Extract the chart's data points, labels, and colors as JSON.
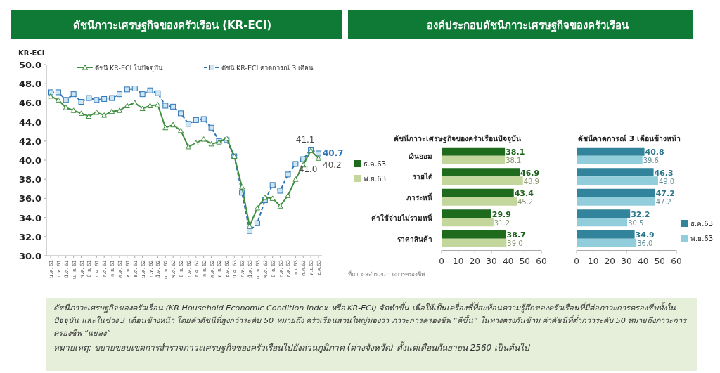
{
  "chart_data": [
    {
      "type": "line",
      "title": "ดัชนีภาวะเศรษฐกิจของครัวเรือน (KR-ECI)",
      "ylabel": "KR-ECI",
      "categories": [
        "ม.ค. 61",
        "ก.พ. 61",
        "มี.ค. 61",
        "เม.ย. 61",
        "พ.ค. 61",
        "มิ.ย. 61",
        "ก.ค. 61",
        "ส.ค. 61",
        "ก.ย. 61",
        "ต.ค. 61",
        "พ.ย. 61",
        "ธ.ค. 61",
        "ม.ค. 62",
        "ก.พ. 62",
        "มี.ค. 62",
        "เม.ย. 62",
        "พ.ค. 62",
        "มิ.ย. 62",
        "ก.ค. 62",
        "ส.ค. 62",
        "ก.ย. 62",
        "ต.ค. 62",
        "พ.ย. 62",
        "ธ.ค. 62",
        "ม.ค. 63",
        "ก.พ. 63",
        "มี.ค. 63",
        "เม.ย. 63",
        "พ.ค. 63",
        "มิ.ย. 63",
        "ก.ค. 63",
        "ส.ค. 63",
        "ก.ย.63",
        "ต.ค.63",
        "พ.ย.63",
        "ธ.ค.63"
      ],
      "series": [
        {
          "name": "ดัชนี KR-ECI ในปัจจุบัน",
          "color": "#3e8e3e",
          "marker": "triangle",
          "line_style": "solid",
          "values": [
            46.7,
            46.3,
            45.5,
            45.2,
            44.9,
            44.6,
            45.0,
            44.7,
            45.1,
            45.2,
            45.7,
            46.0,
            45.4,
            45.7,
            45.8,
            43.4,
            43.7,
            43.1,
            41.4,
            41.8,
            42.2,
            41.7,
            41.9,
            42.3,
            40.4,
            37.2,
            33.1,
            35.0,
            36.1,
            36.0,
            35.2,
            36.3,
            38.0,
            39.5,
            41.0,
            40.2
          ],
          "value_labels": [
            null,
            null,
            null,
            null,
            null,
            null,
            null,
            null,
            null,
            null,
            null,
            null,
            null,
            null,
            null,
            null,
            null,
            null,
            null,
            null,
            null,
            null,
            null,
            null,
            null,
            null,
            null,
            null,
            null,
            null,
            null,
            null,
            null,
            null,
            "41.0",
            "40.2"
          ]
        },
        {
          "name": "ดัชนี KR-ECI คาดการณ์ 3 เดือน",
          "color": "#2e75b6",
          "marker": "square",
          "line_style": "dashed",
          "values": [
            47.1,
            47.1,
            46.3,
            46.9,
            46.1,
            46.5,
            46.3,
            46.4,
            46.5,
            46.9,
            47.4,
            47.5,
            46.9,
            47.3,
            47.0,
            45.7,
            45.6,
            44.9,
            43.8,
            44.2,
            44.3,
            43.4,
            42.0,
            42.1,
            40.4,
            36.6,
            32.6,
            33.4,
            35.8,
            37.4,
            36.8,
            38.5,
            39.6,
            40.1,
            41.1,
            40.7
          ],
          "value_labels": [
            null,
            null,
            null,
            null,
            null,
            null,
            null,
            null,
            null,
            null,
            null,
            null,
            null,
            null,
            null,
            null,
            null,
            null,
            null,
            null,
            null,
            null,
            null,
            null,
            null,
            null,
            null,
            null,
            null,
            null,
            null,
            null,
            null,
            null,
            "41.1",
            "40.7"
          ]
        }
      ],
      "ylim": [
        30,
        50
      ],
      "yticks": [
        {
          "value": 30,
          "label": "30.0"
        },
        {
          "value": 32,
          "label": "32.0"
        },
        {
          "value": 34,
          "label": "34.0"
        },
        {
          "value": 36,
          "label": "36.0"
        },
        {
          "value": 38,
          "label": "38.0"
        },
        {
          "value": 40,
          "label": "40.0"
        },
        {
          "value": 42,
          "label": "42.0"
        },
        {
          "value": 44,
          "label": "44.0"
        },
        {
          "value": 46,
          "label": "46.0"
        },
        {
          "value": 48,
          "label": "48.0"
        },
        {
          "value": 50,
          "label": "50.0"
        }
      ],
      "legend": "top",
      "grid": false,
      "annotations": [
        "ดัชนีภาวะเศรษฐกิจของครัวเรือน (KR Household Economic Condition Index หรือ KR-ECI) จัดทำขึ้น เพื่อให้เป็นเครื่องชี้ที่สะท้อนความรู้สึกของครัวเรือนที่มีต่อภาวะการครองชีพทั้งในปัจจุบัน และในช่วง 3 เดือนข้างหน้า โดยค่าดัชนีที่สูงกว่าระดับ 50 หมายถึง ครัวเรือนส่วนใหญ่มองว่า ภาวะการครองชีพ “ดีขึ้น” ในทางตรงกันข้าม ค่าดัชนีที่ต่ำกว่าระดับ 50 หมายถึงภาวะการครองชีพ “แย่ลง”",
        "หมายเหตุ: ขยายขอบเขตการสำรวจภาวะเศรษฐกิจของครัวเรือนไปยังส่วนภูมิภาค (ต่างจังหวัด) ตั้งแต่เดือนกันยายน 2560 เป็นต้นไป"
      ]
    },
    {
      "type": "bar",
      "orientation": "horizontal",
      "title": "องค์ประกอบดัชนีภาวะเศรษฐกิจของครัวเรือน",
      "subtitle": "ดัชนีภาวะเศรษฐกิจของครัวเรือนปัจจุบัน",
      "categories": [
        "เงินออม",
        "รายได้",
        "ภาระหนี้",
        "ค่าใช้จ่ายไม่รวมหนี้",
        "ราคาสินค้า"
      ],
      "series": [
        {
          "name": "ธ.ค.63",
          "color": "#1e6b1e",
          "values": [
            38.1,
            46.9,
            43.4,
            29.9,
            38.7
          ]
        },
        {
          "name": "พ.ย.63",
          "color": "#c3d69b",
          "values": [
            38.1,
            48.9,
            45.2,
            31.2,
            39.0
          ],
          "value_labels": [
            "38.1",
            "48.9",
            "45.2",
            "31.2",
            "39.0"
          ]
        }
      ],
      "xlim": [
        0,
        60
      ],
      "xticks": [
        0,
        10,
        20,
        30,
        40,
        50,
        60
      ],
      "data_labels": true,
      "legend": "left",
      "grid": false,
      "annotations": [
        "ที่มา: ผลสำรวจภาวะการครองชีพ"
      ]
    },
    {
      "type": "bar",
      "orientation": "horizontal",
      "title": "ดัชนีคาดการณ์ 3 เดือนข้างหน้า",
      "categories": [
        null,
        null,
        null,
        null,
        null
      ],
      "series": [
        {
          "name": "ธ.ค.63",
          "color": "#31849b",
          "values": [
            40.8,
            46.3,
            47.2,
            32.2,
            34.9
          ]
        },
        {
          "name": "พ.ย.63",
          "color": "#92cddc",
          "values": [
            39.6,
            49.0,
            47.2,
            30.5,
            36.0
          ],
          "value_labels": [
            "39.6",
            "49.0",
            "47.2",
            "30.5",
            "36.0"
          ]
        }
      ],
      "xlim": [
        0,
        60
      ],
      "xticks": [
        0,
        10,
        20,
        30,
        40,
        50,
        60
      ],
      "data_labels": true,
      "legend": "right",
      "grid": false
    }
  ]
}
